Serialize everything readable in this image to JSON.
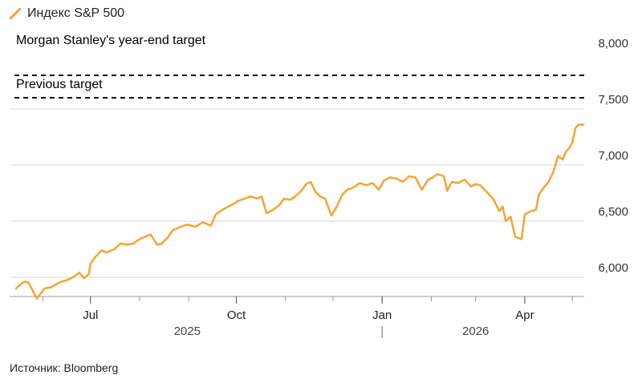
{
  "legend": {
    "series_label": "Индекс S&P 500",
    "color": "#F5A533"
  },
  "source": "Источник: Bloomberg",
  "chart_data": {
    "type": "line",
    "title": "",
    "xlabel": "",
    "ylabel": "",
    "ylim": [
      5850,
      8150
    ],
    "y_ticks": [
      6000,
      6500,
      7000,
      7500,
      8000
    ],
    "y_tick_labels": [
      "6,000",
      "6,500",
      "7,000",
      "7,500",
      "8,000"
    ],
    "x_range": [
      "2025-05-15",
      "2026-05-08"
    ],
    "x_tick_labels": [
      {
        "date": "2025-07-01",
        "label": "Jul"
      },
      {
        "date": "2025-10-01",
        "label": "Oct"
      },
      {
        "date": "2026-01-01",
        "label": "Jan"
      },
      {
        "date": "2026-04-01",
        "label": "Apr"
      }
    ],
    "year_labels": [
      {
        "date": "2025-08-31",
        "label": "2025"
      },
      {
        "date": "2026-03-01",
        "label": "2026"
      }
    ],
    "grid": true,
    "reference_lines": [
      {
        "name": "Morgan Stanley's year-end target",
        "value": 7800
      },
      {
        "name": "Previous target",
        "value": 7600
      }
    ],
    "series": [
      {
        "name": "Индекс S&P 500",
        "color": "#F5A533",
        "points": [
          [
            "2025-05-15",
            5900
          ],
          [
            "2025-05-19",
            5950
          ],
          [
            "2025-05-21",
            5960
          ],
          [
            "2025-05-23",
            5950
          ],
          [
            "2025-05-28",
            5810
          ],
          [
            "2025-06-02",
            5900
          ],
          [
            "2025-06-06",
            5910
          ],
          [
            "2025-06-11",
            5950
          ],
          [
            "2025-06-13",
            5960
          ],
          [
            "2025-06-17",
            5980
          ],
          [
            "2025-06-20",
            6000
          ],
          [
            "2025-06-24",
            6040
          ],
          [
            "2025-06-27",
            5990
          ],
          [
            "2025-06-30",
            6030
          ],
          [
            "2025-07-01",
            6120
          ],
          [
            "2025-07-04",
            6180
          ],
          [
            "2025-07-08",
            6240
          ],
          [
            "2025-07-11",
            6220
          ],
          [
            "2025-07-16",
            6250
          ],
          [
            "2025-07-20",
            6300
          ],
          [
            "2025-07-24",
            6290
          ],
          [
            "2025-07-28",
            6300
          ],
          [
            "2025-08-01",
            6340
          ],
          [
            "2025-08-06",
            6370
          ],
          [
            "2025-08-08",
            6380
          ],
          [
            "2025-08-12",
            6290
          ],
          [
            "2025-08-15",
            6300
          ],
          [
            "2025-08-19",
            6360
          ],
          [
            "2025-08-22",
            6420
          ],
          [
            "2025-08-27",
            6450
          ],
          [
            "2025-08-31",
            6470
          ],
          [
            "2025-09-05",
            6450
          ],
          [
            "2025-09-10",
            6490
          ],
          [
            "2025-09-15",
            6460
          ],
          [
            "2025-09-18",
            6560
          ],
          [
            "2025-09-22",
            6600
          ],
          [
            "2025-09-26",
            6630
          ],
          [
            "2025-09-30",
            6660
          ],
          [
            "2025-10-02",
            6680
          ],
          [
            "2025-10-06",
            6700
          ],
          [
            "2025-10-10",
            6720
          ],
          [
            "2025-10-14",
            6700
          ],
          [
            "2025-10-17",
            6720
          ],
          [
            "2025-10-20",
            6570
          ],
          [
            "2025-10-24",
            6600
          ],
          [
            "2025-10-28",
            6640
          ],
          [
            "2025-10-31",
            6700
          ],
          [
            "2025-11-04",
            6690
          ],
          [
            "2025-11-07",
            6720
          ],
          [
            "2025-11-11",
            6770
          ],
          [
            "2025-11-14",
            6830
          ],
          [
            "2025-11-17",
            6850
          ],
          [
            "2025-11-20",
            6760
          ],
          [
            "2025-11-23",
            6720
          ],
          [
            "2025-11-26",
            6700
          ],
          [
            "2025-11-30",
            6550
          ],
          [
            "2025-12-03",
            6620
          ],
          [
            "2025-12-07",
            6740
          ],
          [
            "2025-12-10",
            6780
          ],
          [
            "2025-12-14",
            6800
          ],
          [
            "2025-12-18",
            6840
          ],
          [
            "2025-12-22",
            6820
          ],
          [
            "2025-12-26",
            6840
          ],
          [
            "2025-12-30",
            6780
          ],
          [
            "2026-01-02",
            6860
          ],
          [
            "2026-01-06",
            6890
          ],
          [
            "2026-01-10",
            6880
          ],
          [
            "2026-01-14",
            6850
          ],
          [
            "2026-01-18",
            6900
          ],
          [
            "2026-01-22",
            6890
          ],
          [
            "2026-01-26",
            6780
          ],
          [
            "2026-01-30",
            6870
          ],
          [
            "2026-02-02",
            6890
          ],
          [
            "2026-02-05",
            6920
          ],
          [
            "2026-02-09",
            6900
          ],
          [
            "2026-02-11",
            6770
          ],
          [
            "2026-02-14",
            6850
          ],
          [
            "2026-02-18",
            6840
          ],
          [
            "2026-02-22",
            6870
          ],
          [
            "2026-02-26",
            6810
          ],
          [
            "2026-03-01",
            6830
          ],
          [
            "2026-03-04",
            6820
          ],
          [
            "2026-03-08",
            6760
          ],
          [
            "2026-03-12",
            6700
          ],
          [
            "2026-03-16",
            6590
          ],
          [
            "2026-03-18",
            6630
          ],
          [
            "2026-03-20",
            6500
          ],
          [
            "2026-03-23",
            6540
          ],
          [
            "2026-03-26",
            6360
          ],
          [
            "2026-03-30",
            6340
          ],
          [
            "2026-04-01",
            6560
          ],
          [
            "2026-04-05",
            6590
          ],
          [
            "2026-04-08",
            6600
          ],
          [
            "2026-04-10",
            6740
          ],
          [
            "2026-04-13",
            6800
          ],
          [
            "2026-04-16",
            6850
          ],
          [
            "2026-04-19",
            6940
          ],
          [
            "2026-04-22",
            7080
          ],
          [
            "2026-04-25",
            7050
          ],
          [
            "2026-04-27",
            7120
          ],
          [
            "2026-04-29",
            7150
          ],
          [
            "2026-05-01",
            7200
          ],
          [
            "2026-05-03",
            7330
          ],
          [
            "2026-05-05",
            7360
          ],
          [
            "2026-05-08",
            7360
          ]
        ]
      }
    ]
  }
}
